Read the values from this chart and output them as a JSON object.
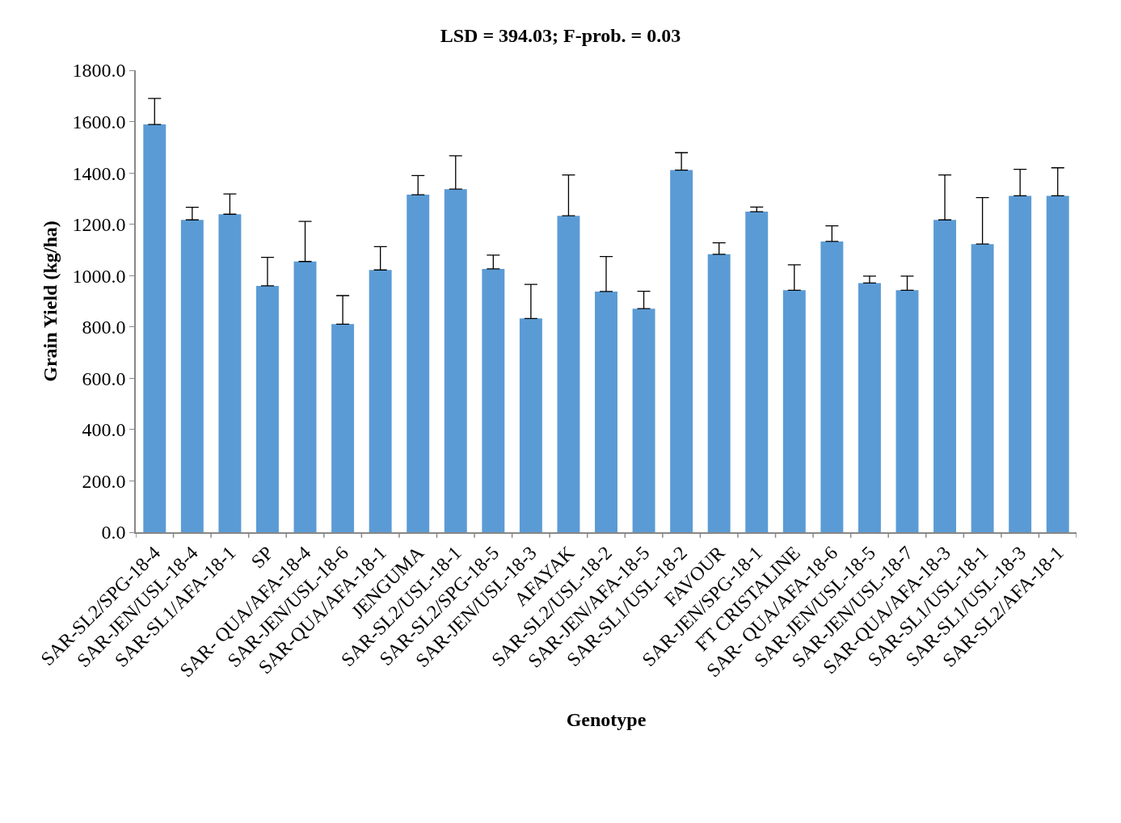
{
  "chart_data": {
    "type": "bar",
    "title": "LSD = 394.03; F-prob. = 0.03",
    "xlabel": "Genotype",
    "ylabel": "Grain Yield (kg/ha)",
    "categories": [
      "SAR-SL2/SPG-18-4",
      "SAR-JEN/USL-18-4",
      "SAR-SL1/AFA-18-1",
      "SP",
      "SAR- QUA/AFA-18-4",
      "SAR-JEN/USL-18-6",
      "SAR-QUA/AFA-18-1",
      "JENGUMA",
      "SAR-SL2/USL-18-1",
      "SAR-SL2/SPG-18-5",
      "SAR-JEN/USL-18-3",
      "AFAYAK",
      "SAR-SL2/USL-18-2",
      "SAR-JEN/AFA-18-5",
      "SAR-SL1/USL-18-2",
      "FAVOUR",
      "SAR-JEN/SPG-18-1",
      "FT CRISTALINE",
      "SAR- QUA/AFA-18-6",
      "SAR-JEN/USL-18-5",
      "SAR-JEN/USL-18-7",
      "SAR-QUA/AFA-18-3",
      "SAR-SL1/USL-18-1",
      "SAR-SL1/USL-18-3",
      "SAR-SL2/AFA-18-1"
    ],
    "values": [
      1589,
      1217,
      1239,
      960,
      1055,
      811,
      1022,
      1315,
      1337,
      1026,
      833,
      1233,
      938,
      871,
      1411,
      1083,
      1249,
      943,
      1133,
      971,
      943,
      1217,
      1123,
      1311,
      1311
    ],
    "errors": [
      [
        1589,
        1690
      ],
      [
        1217,
        1266
      ],
      [
        1239,
        1318
      ],
      [
        960,
        1071
      ],
      [
        1055,
        1211
      ],
      [
        811,
        922
      ],
      [
        1022,
        1113
      ],
      [
        1315,
        1390
      ],
      [
        1337,
        1467
      ],
      [
        1026,
        1080
      ],
      [
        833,
        966
      ],
      [
        1233,
        1392
      ],
      [
        938,
        1074
      ],
      [
        871,
        939
      ],
      [
        1411,
        1479
      ],
      [
        1083,
        1128
      ],
      [
        1249,
        1267
      ],
      [
        943,
        1042
      ],
      [
        1133,
        1194
      ],
      [
        971,
        998
      ],
      [
        943,
        998
      ],
      [
        1217,
        1392
      ],
      [
        1123,
        1304
      ],
      [
        1311,
        1414
      ],
      [
        1311,
        1420
      ]
    ],
    "color": "#5b9bd5",
    "ylim": [
      0,
      1800
    ],
    "yticks": [
      {
        "value": 0,
        "label": "0.0"
      },
      {
        "value": 200,
        "label": "200.0"
      },
      {
        "value": 400,
        "label": "400.0"
      },
      {
        "value": 600,
        "label": "600.0"
      },
      {
        "value": 800,
        "label": "800.0"
      },
      {
        "value": 1000,
        "label": "1000.0"
      },
      {
        "value": 1200,
        "label": "1200.0"
      },
      {
        "value": 1400,
        "label": "1400.0"
      },
      {
        "value": 1600,
        "label": "1600.0"
      },
      {
        "value": 1800,
        "label": "1800.0"
      }
    ]
  }
}
